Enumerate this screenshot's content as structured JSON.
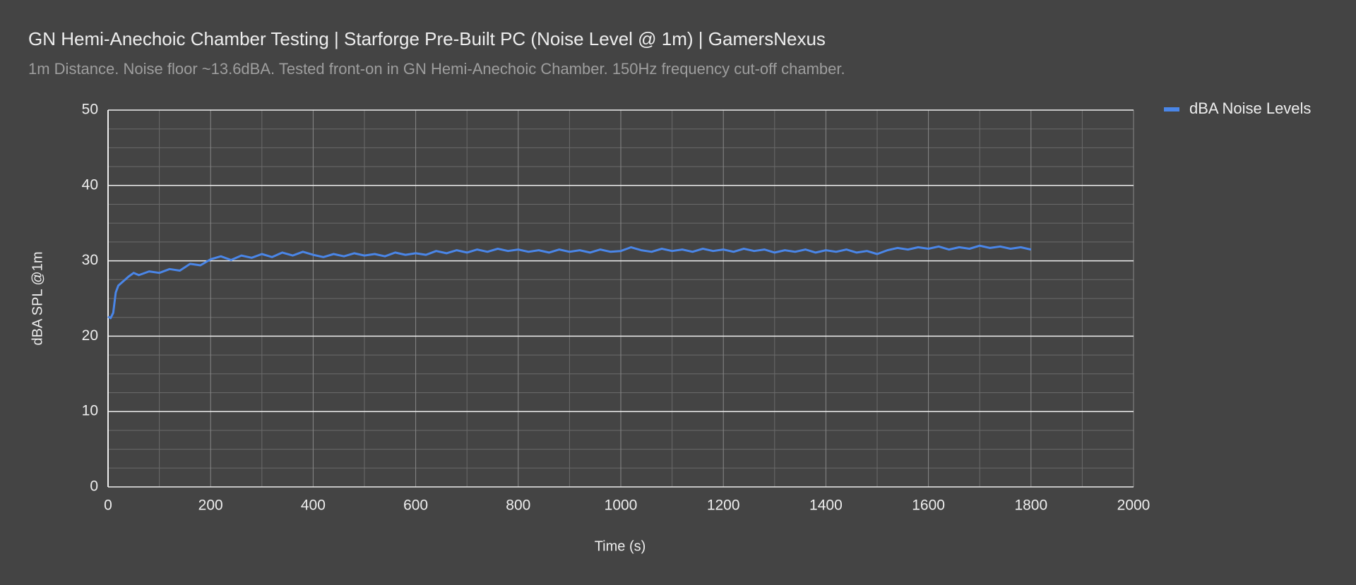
{
  "chart_data": {
    "type": "line",
    "title": "GN Hemi-Anechoic Chamber Testing | Starforge Pre-Built PC (Noise Level @ 1m) | GamersNexus",
    "subtitle": "1m Distance. Noise floor ~13.6dBA. Tested front-on in GN Hemi-Anechoic Chamber. 150Hz frequency cut-off chamber.",
    "x_label": "Time (s)",
    "y_label": "dBA SPL @1m",
    "xlim": [
      0,
      2000
    ],
    "xticks": [
      0,
      200,
      400,
      600,
      800,
      1000,
      1200,
      1400,
      1600,
      1800,
      2000
    ],
    "ylim": [
      0,
      50
    ],
    "yticks": [
      0,
      10,
      20,
      30,
      40,
      50
    ],
    "grid": true,
    "minor_grid": true,
    "legend": "right",
    "x": [
      0,
      5,
      10,
      15,
      20,
      30,
      40,
      50,
      60,
      80,
      100,
      120,
      140,
      160,
      180,
      200,
      220,
      240,
      260,
      280,
      300,
      320,
      340,
      360,
      380,
      400,
      420,
      440,
      460,
      480,
      500,
      520,
      540,
      560,
      580,
      600,
      620,
      640,
      660,
      680,
      700,
      720,
      740,
      760,
      780,
      800,
      820,
      840,
      860,
      880,
      900,
      920,
      940,
      960,
      980,
      1000,
      1020,
      1040,
      1060,
      1080,
      1100,
      1120,
      1140,
      1160,
      1180,
      1200,
      1220,
      1240,
      1260,
      1280,
      1300,
      1320,
      1340,
      1360,
      1380,
      1400,
      1420,
      1440,
      1460,
      1480,
      1500,
      1520,
      1540,
      1560,
      1580,
      1600,
      1620,
      1640,
      1660,
      1680,
      1700,
      1720,
      1740,
      1760,
      1780,
      1800
    ],
    "series": [
      {
        "name": "dBA Noise Levels",
        "color": "#4a86e8",
        "values": [
          22.6,
          22.4,
          23.1,
          25.8,
          26.7,
          27.3,
          27.9,
          28.4,
          28.1,
          28.6,
          28.4,
          28.9,
          28.7,
          29.6,
          29.4,
          30.2,
          30.6,
          30.1,
          30.7,
          30.4,
          30.9,
          30.5,
          31.1,
          30.7,
          31.2,
          30.8,
          30.5,
          30.9,
          30.6,
          31.0,
          30.7,
          30.9,
          30.6,
          31.1,
          30.8,
          31.0,
          30.8,
          31.3,
          31.0,
          31.4,
          31.1,
          31.5,
          31.2,
          31.6,
          31.3,
          31.5,
          31.2,
          31.4,
          31.1,
          31.5,
          31.2,
          31.4,
          31.1,
          31.5,
          31.2,
          31.3,
          31.8,
          31.4,
          31.2,
          31.6,
          31.3,
          31.5,
          31.2,
          31.6,
          31.3,
          31.5,
          31.2,
          31.6,
          31.3,
          31.5,
          31.1,
          31.4,
          31.2,
          31.5,
          31.1,
          31.4,
          31.2,
          31.5,
          31.1,
          31.3,
          30.9,
          31.4,
          31.7,
          31.5,
          31.8,
          31.6,
          31.9,
          31.5,
          31.8,
          31.6,
          32.0,
          31.7,
          31.9,
          31.6,
          31.8,
          31.5
        ]
      }
    ]
  }
}
